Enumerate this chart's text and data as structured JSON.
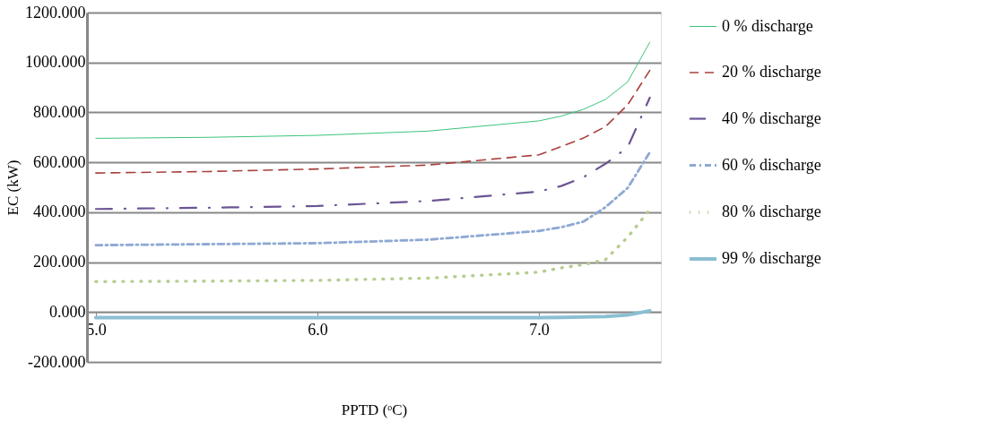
{
  "chart_data": {
    "type": "line",
    "xlabel": "PPTD (ᵒC)",
    "ylabel": "EC (kW)",
    "x": [
      5.0,
      5.5,
      6.0,
      6.5,
      7.0,
      7.1,
      7.2,
      7.3,
      7.4,
      7.5
    ],
    "xlim": [
      4.96,
      7.55
    ],
    "xticks": [
      {
        "value": 5,
        "label": "5.0"
      },
      {
        "value": 6,
        "label": "6.0"
      },
      {
        "value": 7,
        "label": "7.0"
      }
    ],
    "ylim": [
      -200,
      1200
    ],
    "yticks": [
      {
        "value": -200,
        "label": "-200.000"
      },
      {
        "value": 0,
        "label": "0.000"
      },
      {
        "value": 200,
        "label": "200.000"
      },
      {
        "value": 400,
        "label": "400.000"
      },
      {
        "value": 600,
        "label": "600.000"
      },
      {
        "value": 800,
        "label": "800.000"
      },
      {
        "value": 1000,
        "label": "1000.000"
      },
      {
        "value": 1200,
        "label": "1200.000"
      }
    ],
    "grid": "y",
    "legend": "right",
    "marker": "none",
    "series": [
      {
        "name": "0 % discharge",
        "color": "#3cc47a",
        "line_style": "solid",
        "values": [
          696,
          700,
          708,
          725,
          766,
          785,
          812,
          852,
          922,
          1081
        ]
      },
      {
        "name": "20 % discharge",
        "color": "#a9403c",
        "line_style": "dashed",
        "values": [
          557,
          563,
          573,
          589,
          630,
          663,
          697,
          743,
          830,
          968
        ]
      },
      {
        "name": "40 % discharge",
        "color": "#6b5594",
        "line_style": "dashed",
        "values": [
          413,
          418,
          425,
          445,
          483,
          505,
          540,
          594,
          660,
          859
        ]
      },
      {
        "name": "60 % discharge",
        "color": "#8ea9d2",
        "line_style": "dashed",
        "values": [
          268,
          272,
          276,
          290,
          325,
          340,
          362,
          420,
          497,
          640
        ]
      },
      {
        "name": "80 % discharge",
        "color": "#b6cd90",
        "line_style": "dotted",
        "values": [
          122,
          124,
          127,
          136,
          160,
          177,
          190,
          210,
          300,
          410
        ]
      },
      {
        "name": "99 % discharge",
        "color": "#8bbfd3",
        "line_style": "solid",
        "values": [
          -22,
          -22,
          -22,
          -22,
          -22,
          -21,
          -20,
          -18,
          -12,
          5
        ]
      }
    ]
  }
}
